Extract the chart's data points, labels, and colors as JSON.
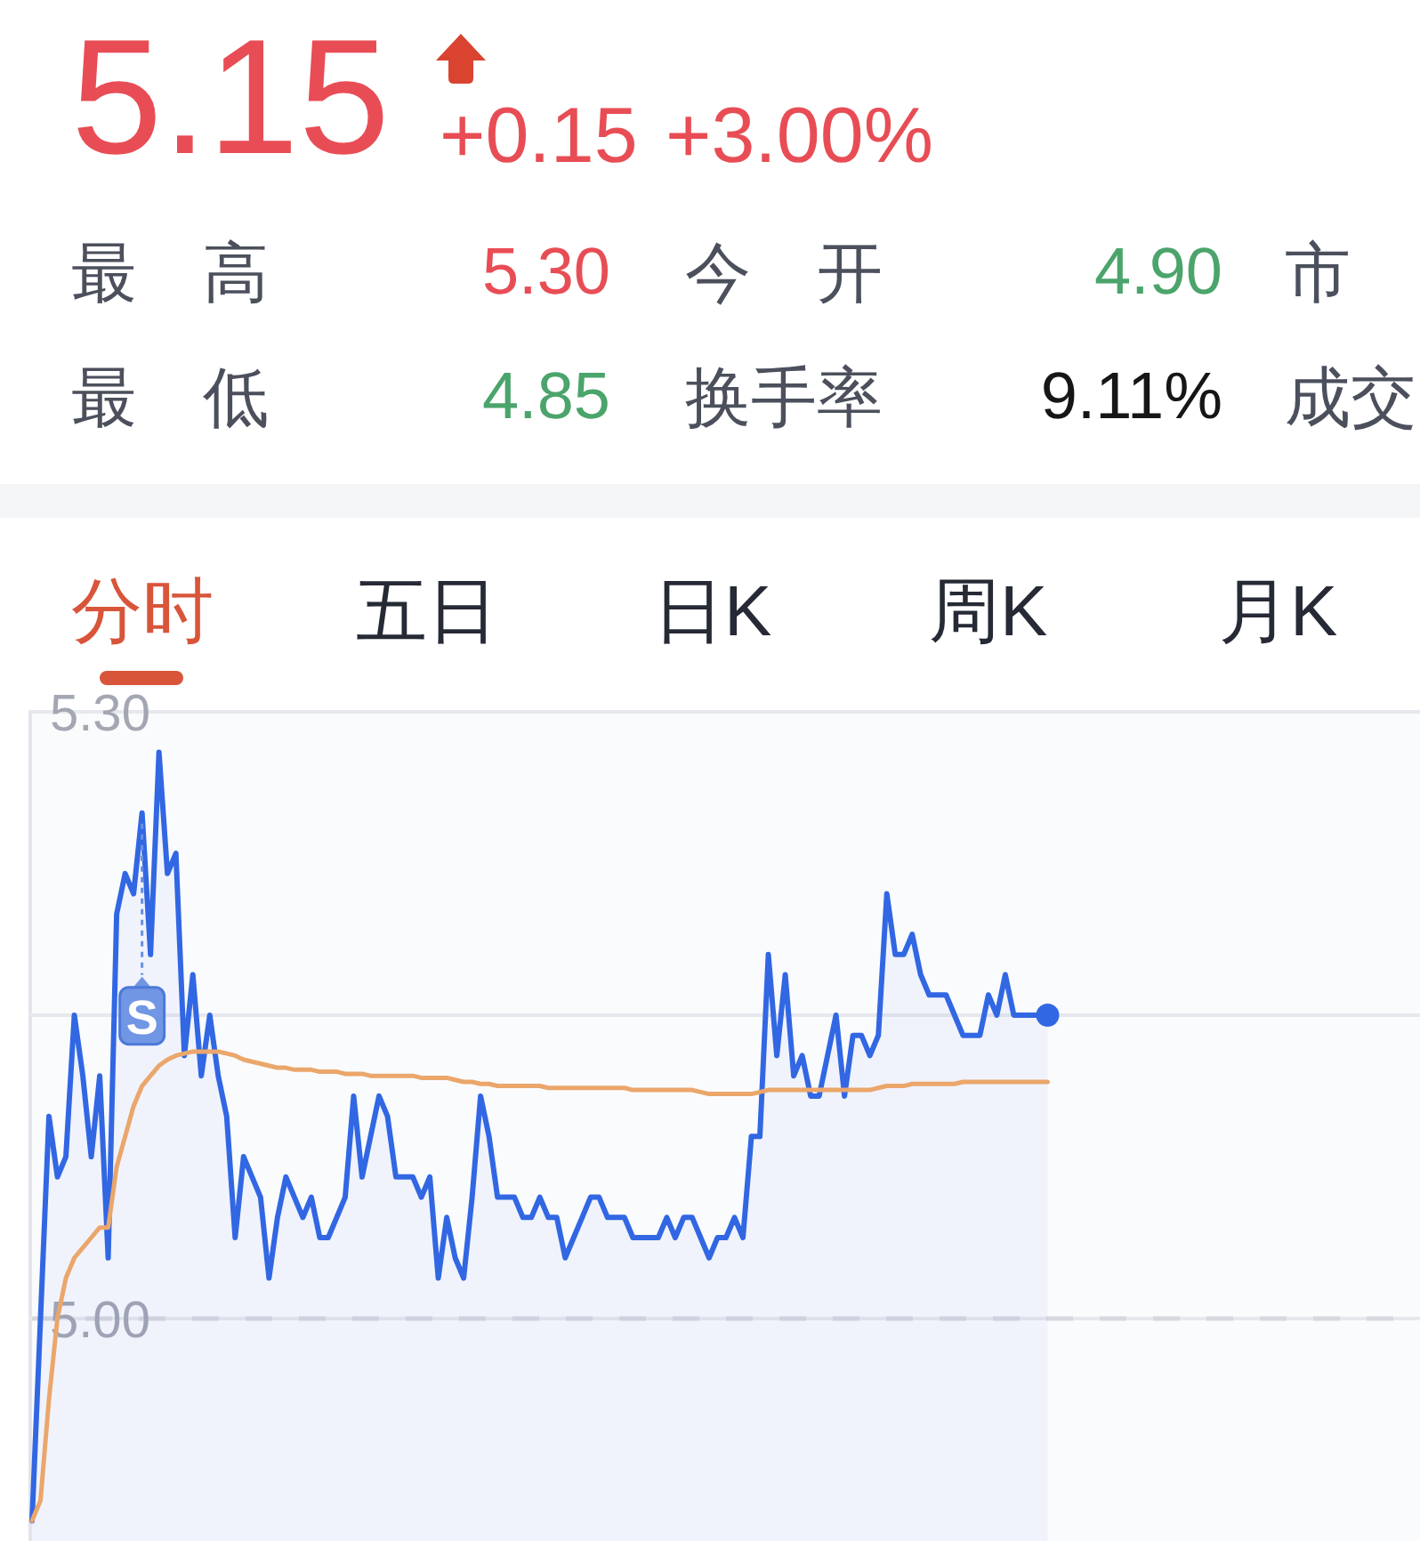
{
  "chart_data": [
    {
      "type": "other",
      "annotations": [
        "5.15",
        "+0.15",
        "+3.00%",
        "最　高",
        "5.30",
        "今　开",
        "4.90",
        "市",
        "最　低",
        "4.85",
        "换手率",
        "9.11%",
        "成交",
        "分时",
        "五日",
        "日K",
        "周K",
        "月K"
      ]
    },
    {
      "type": "line",
      "categories": [
        null,
        null,
        null,
        null,
        null,
        null,
        null,
        null,
        null,
        null,
        null,
        null,
        null,
        null,
        null,
        null,
        null,
        null,
        null,
        null,
        null,
        null,
        null,
        null,
        null,
        null,
        null,
        null,
        null,
        null,
        null,
        null,
        null,
        null,
        null,
        null,
        null,
        null,
        null,
        null,
        null,
        null,
        null,
        null,
        null,
        null,
        null,
        null,
        null,
        null,
        null,
        null,
        null,
        null,
        null,
        null,
        null,
        null,
        null,
        null,
        null,
        null,
        null,
        null,
        null,
        null,
        null,
        null,
        null,
        null,
        null,
        null,
        null,
        null,
        null,
        null,
        null,
        null,
        null,
        null,
        null,
        null,
        null,
        null,
        null,
        null,
        null,
        null,
        null,
        null,
        null,
        null,
        null,
        null,
        null,
        null,
        null,
        null,
        null,
        null,
        null,
        null,
        null,
        null,
        null,
        null,
        null,
        null,
        null,
        null,
        null,
        null,
        null,
        null,
        null,
        null,
        null,
        null,
        null,
        null,
        null,
        null,
        null,
        null,
        null,
        null,
        null,
        null,
        null,
        null,
        null,
        null,
        null,
        null,
        null,
        null,
        null,
        null,
        null,
        null,
        null,
        null,
        null,
        null,
        null,
        null,
        null,
        null,
        null,
        null,
        null,
        null,
        null,
        null,
        null,
        null,
        null,
        null,
        null,
        null,
        null,
        null,
        null,
        null
      ],
      "series": [
        {
          "type": "area",
          "color": "#3267e3",
          "values": [
            4.9,
            5.0,
            5.1,
            5.07,
            5.08,
            5.15,
            5.12,
            5.08,
            5.12,
            5.03,
            5.2,
            5.22,
            5.21,
            5.25,
            5.18,
            5.28,
            5.22,
            5.23,
            5.13,
            5.17,
            5.12,
            5.15,
            5.12,
            5.1,
            5.04,
            5.08,
            5.07,
            5.06,
            5.02,
            5.05,
            5.07,
            5.06,
            5.05,
            5.06,
            5.04,
            5.04,
            5.05,
            5.06,
            5.11,
            5.07,
            5.09,
            5.11,
            5.1,
            5.07,
            5.07,
            5.07,
            5.06,
            5.07,
            5.02,
            5.05,
            5.03,
            5.02,
            5.06,
            5.11,
            5.09,
            5.06,
            5.06,
            5.06,
            5.05,
            5.05,
            5.06,
            5.05,
            5.05,
            5.03,
            5.04,
            5.05,
            5.06,
            5.06,
            5.05,
            5.05,
            5.05,
            5.04,
            5.04,
            5.04,
            5.04,
            5.05,
            5.04,
            5.05,
            5.05,
            5.04,
            5.03,
            5.04,
            5.04,
            5.05,
            5.04,
            5.09,
            5.09,
            5.18,
            5.13,
            5.17,
            5.12,
            5.13,
            5.11,
            5.11,
            5.13,
            5.15,
            5.11,
            5.14,
            5.14,
            5.13,
            5.14,
            5.21,
            5.18,
            5.18,
            5.19,
            5.17,
            5.16,
            5.16,
            5.16,
            5.15,
            5.14,
            5.14,
            5.14,
            5.16,
            5.15,
            5.17,
            5.15,
            5.15,
            5.15,
            5.15,
            5.15,
            null,
            null,
            null,
            null,
            null,
            null,
            null,
            null,
            null,
            null,
            null,
            null,
            null,
            null,
            null,
            null,
            null,
            null,
            null,
            null,
            null,
            null,
            null,
            null,
            null,
            null,
            null,
            null,
            null,
            null,
            null,
            null,
            null,
            null,
            null,
            null,
            null,
            null,
            null,
            null,
            null,
            null,
            null
          ]
        },
        {
          "type": "line",
          "color": "#eba66b",
          "values": [
            4.9,
            4.91,
            4.96,
            5.0,
            5.02,
            5.03,
            5.035,
            5.04,
            5.045,
            5.045,
            5.075,
            5.09,
            5.105,
            5.115,
            5.12,
            5.125,
            5.128,
            5.13,
            5.131,
            5.132,
            5.132,
            5.132,
            5.132,
            5.131,
            5.13,
            5.128,
            5.127,
            5.126,
            5.125,
            5.124,
            5.124,
            5.123,
            5.123,
            5.123,
            5.122,
            5.122,
            5.122,
            5.121,
            5.121,
            5.121,
            5.12,
            5.12,
            5.12,
            5.12,
            5.12,
            5.12,
            5.119,
            5.119,
            5.119,
            5.119,
            5.118,
            5.117,
            5.117,
            5.116,
            5.116,
            5.115,
            5.115,
            5.115,
            5.115,
            5.115,
            5.115,
            5.114,
            5.114,
            5.114,
            5.114,
            5.114,
            5.114,
            5.114,
            5.114,
            5.114,
            5.114,
            5.113,
            5.113,
            5.113,
            5.113,
            5.113,
            5.113,
            5.113,
            5.113,
            5.112,
            5.111,
            5.111,
            5.111,
            5.111,
            5.111,
            5.111,
            5.112,
            5.113,
            5.113,
            5.113,
            5.113,
            5.113,
            5.113,
            5.113,
            5.113,
            5.113,
            5.113,
            5.113,
            5.113,
            5.113,
            5.114,
            5.115,
            5.115,
            5.115,
            5.116,
            5.116,
            5.116,
            5.116,
            5.116,
            5.116,
            5.117,
            5.117,
            5.117,
            5.117,
            5.117,
            5.117,
            5.117,
            5.117,
            5.117,
            5.117,
            5.117,
            null,
            null,
            null,
            null,
            null,
            null,
            null,
            null,
            null,
            null,
            null,
            null,
            null,
            null,
            null,
            null,
            null,
            null,
            null,
            null,
            null,
            null,
            null,
            null,
            null,
            null,
            null,
            null,
            null,
            null,
            null,
            null,
            null,
            null,
            null,
            null,
            null,
            null,
            null,
            null,
            null,
            null,
            null
          ]
        },
        {
          "type": "scatter",
          "marker": "circle",
          "color": "#3267e3",
          "values": [
            null,
            null,
            null,
            null,
            null,
            null,
            null,
            null,
            null,
            null,
            null,
            null,
            null,
            null,
            null,
            null,
            null,
            null,
            null,
            null,
            null,
            null,
            null,
            null,
            null,
            null,
            null,
            null,
            null,
            null,
            null,
            null,
            null,
            null,
            null,
            null,
            null,
            null,
            null,
            null,
            null,
            null,
            null,
            null,
            null,
            null,
            null,
            null,
            null,
            null,
            null,
            null,
            null,
            null,
            null,
            null,
            null,
            null,
            null,
            null,
            null,
            null,
            null,
            null,
            null,
            null,
            null,
            null,
            null,
            null,
            null,
            null,
            null,
            null,
            null,
            null,
            null,
            null,
            null,
            null,
            null,
            null,
            null,
            null,
            null,
            null,
            null,
            null,
            null,
            null,
            null,
            null,
            null,
            null,
            null,
            null,
            null,
            null,
            null,
            null,
            null,
            null,
            null,
            null,
            null,
            null,
            null,
            null,
            null,
            null,
            null,
            null,
            null,
            null,
            null,
            null,
            null,
            null,
            null,
            null,
            5.15,
            null,
            null,
            null,
            null,
            null,
            null,
            null,
            null,
            null,
            null,
            null,
            null,
            null,
            null,
            null,
            null,
            null,
            null,
            null,
            null,
            null,
            null,
            null,
            null,
            null,
            null,
            null,
            null,
            null,
            null,
            null,
            null,
            null,
            null,
            null,
            null,
            null,
            null,
            null,
            null,
            null,
            null,
            null
          ]
        }
      ],
      "ylim": [
        4.89,
        5.3
      ],
      "yticks": [
        {
          "value": 5.3,
          "label": "5.30"
        },
        {
          "value": 5.15,
          "label": null
        },
        {
          "value": 5.0,
          "label": "5.00"
        }
      ],
      "grid": "y",
      "tick_labels": "y",
      "ref_lines": [
        {
          "axis": "y",
          "value": 5.0,
          "line_style": "dashed",
          "color": "#d6d8de"
        }
      ],
      "annotations": [
        {
          "text": "S",
          "y": 5.25
        }
      ]
    }
  ]
}
